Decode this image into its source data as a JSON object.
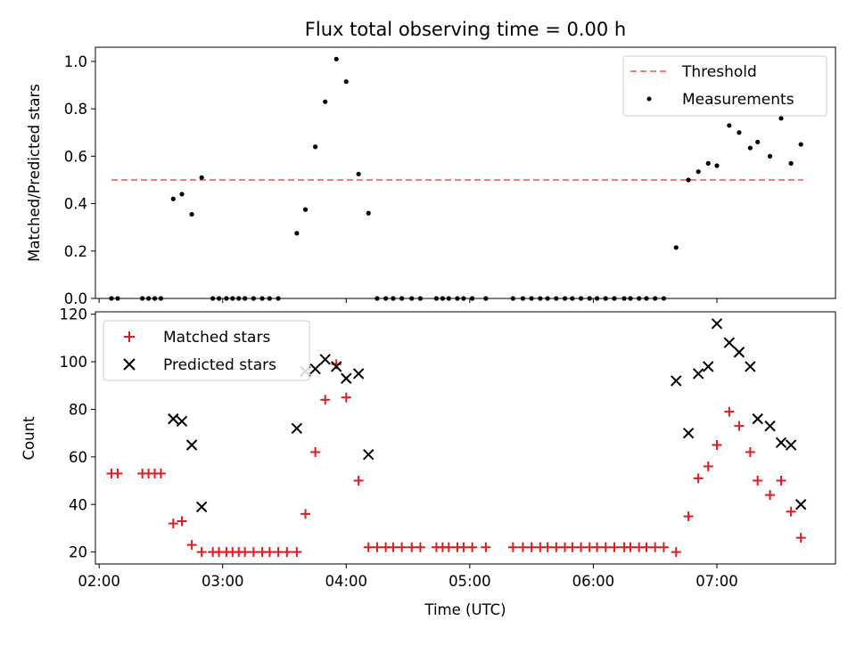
{
  "chart_data": [
    {
      "type": "scatter",
      "title": "Flux total observing time = 0.00 h",
      "ylabel": "Matched/Predicted stars",
      "xlim": [
        1.97,
        7.96
      ],
      "ylim": [
        0,
        1.06
      ],
      "yticks": [
        "0.0",
        "0.2",
        "0.4",
        "0.6",
        "0.8",
        "1.0"
      ],
      "ytick_values": [
        0,
        0.2,
        0.4,
        0.6,
        0.8,
        1.0
      ],
      "legend_position": "top-right",
      "threshold": {
        "name": "Threshold",
        "value": 0.5,
        "x": [
          2.1,
          7.7
        ],
        "color": "#f08080"
      },
      "measurements": {
        "name": "Measurements",
        "color": "#000000",
        "x": [
          2.1,
          2.15,
          2.35,
          2.4,
          2.45,
          2.5,
          2.6,
          2.67,
          2.75,
          2.83,
          2.92,
          2.97,
          3.03,
          3.08,
          3.13,
          3.18,
          3.25,
          3.32,
          3.38,
          3.45,
          3.6,
          3.67,
          3.75,
          3.83,
          3.92,
          4.0,
          4.1,
          4.18,
          4.25,
          4.32,
          4.38,
          4.45,
          4.53,
          4.6,
          4.73,
          4.78,
          4.83,
          4.9,
          4.95,
          5.02,
          5.13,
          5.35,
          5.43,
          5.5,
          5.57,
          5.63,
          5.7,
          5.77,
          5.83,
          5.9,
          5.97,
          6.03,
          6.1,
          6.17,
          6.25,
          6.3,
          6.37,
          6.43,
          6.5,
          6.57,
          6.67,
          6.77,
          6.85,
          6.93,
          7.0,
          7.1,
          7.18,
          7.27,
          7.33,
          7.43,
          7.52,
          7.6,
          7.68
        ],
        "y": [
          0,
          0,
          0,
          0,
          0,
          0,
          0.42,
          0.44,
          0.355,
          0.51,
          0,
          0,
          0,
          0,
          0,
          0,
          0,
          0,
          0,
          0,
          0.275,
          0.375,
          0.64,
          0.83,
          1.01,
          0.915,
          0.525,
          0.36,
          0,
          0,
          0,
          0,
          0,
          0,
          0,
          0,
          0,
          0,
          0,
          0,
          0,
          0,
          0,
          0,
          0,
          0,
          0,
          0,
          0,
          0,
          0,
          0,
          0,
          0,
          0,
          0,
          0,
          0,
          0,
          0,
          0.215,
          0.5,
          0.535,
          0.57,
          0.56,
          0.73,
          0.7,
          0.635,
          0.66,
          0.6,
          0.76,
          0.57,
          0.65
        ]
      }
    },
    {
      "type": "scatter",
      "title": "",
      "xlabel": "Time (UTC)",
      "ylabel": "Count",
      "xlim": [
        1.97,
        7.96
      ],
      "ylim": [
        15,
        121
      ],
      "xticks": [
        "02:00",
        "03:00",
        "04:00",
        "05:00",
        "06:00",
        "07:00"
      ],
      "xtick_values": [
        2,
        3,
        4,
        5,
        6,
        7
      ],
      "yticks": [
        "20",
        "40",
        "60",
        "80",
        "100",
        "120"
      ],
      "ytick_values": [
        20,
        40,
        60,
        80,
        100,
        120
      ],
      "legend_position": "top-left",
      "series": [
        {
          "name": "Matched stars",
          "marker": "plus",
          "color": "#e41a1c",
          "x": [
            2.1,
            2.15,
            2.35,
            2.4,
            2.45,
            2.5,
            2.6,
            2.67,
            2.75,
            2.83,
            2.92,
            2.97,
            3.03,
            3.08,
            3.13,
            3.18,
            3.25,
            3.32,
            3.38,
            3.45,
            3.52,
            3.6,
            3.67,
            3.75,
            3.83,
            3.92,
            4.0,
            4.1,
            4.18,
            4.25,
            4.32,
            4.38,
            4.45,
            4.53,
            4.6,
            4.73,
            4.78,
            4.83,
            4.9,
            4.95,
            5.02,
            5.13,
            5.35,
            5.43,
            5.5,
            5.57,
            5.63,
            5.7,
            5.77,
            5.83,
            5.9,
            5.97,
            6.03,
            6.1,
            6.17,
            6.25,
            6.3,
            6.37,
            6.43,
            6.5,
            6.57,
            6.67,
            6.77,
            6.85,
            6.93,
            7.0,
            7.1,
            7.18,
            7.27,
            7.33,
            7.43,
            7.52,
            7.6,
            7.68
          ],
          "y": [
            53,
            53,
            53,
            53,
            53,
            53,
            32,
            33,
            23,
            20,
            20,
            20,
            20,
            20,
            20,
            20,
            20,
            20,
            20,
            20,
            20,
            20,
            36,
            62,
            84,
            99,
            85,
            50,
            22,
            22,
            22,
            22,
            22,
            22,
            22,
            22,
            22,
            22,
            22,
            22,
            22,
            22,
            22,
            22,
            22,
            22,
            22,
            22,
            22,
            22,
            22,
            22,
            22,
            22,
            22,
            22,
            22,
            22,
            22,
            22,
            22,
            20,
            35,
            51,
            56,
            65,
            79,
            73,
            62,
            50,
            44,
            50,
            37,
            26
          ]
        },
        {
          "name": "Predicted stars",
          "marker": "x",
          "color": "#000000",
          "x": [
            2.6,
            2.67,
            2.75,
            2.83,
            3.6,
            3.67,
            3.75,
            3.83,
            3.92,
            4.0,
            4.1,
            4.18,
            6.67,
            6.77,
            6.85,
            6.93,
            7.0,
            7.1,
            7.18,
            7.27,
            7.33,
            7.43,
            7.52,
            7.6,
            7.68
          ],
          "y": [
            76,
            75,
            65,
            39,
            72,
            96,
            97,
            101,
            98,
            93,
            95,
            61,
            92,
            70,
            95,
            98,
            116,
            108,
            104,
            98,
            76,
            73,
            66,
            65,
            40
          ]
        }
      ]
    }
  ]
}
